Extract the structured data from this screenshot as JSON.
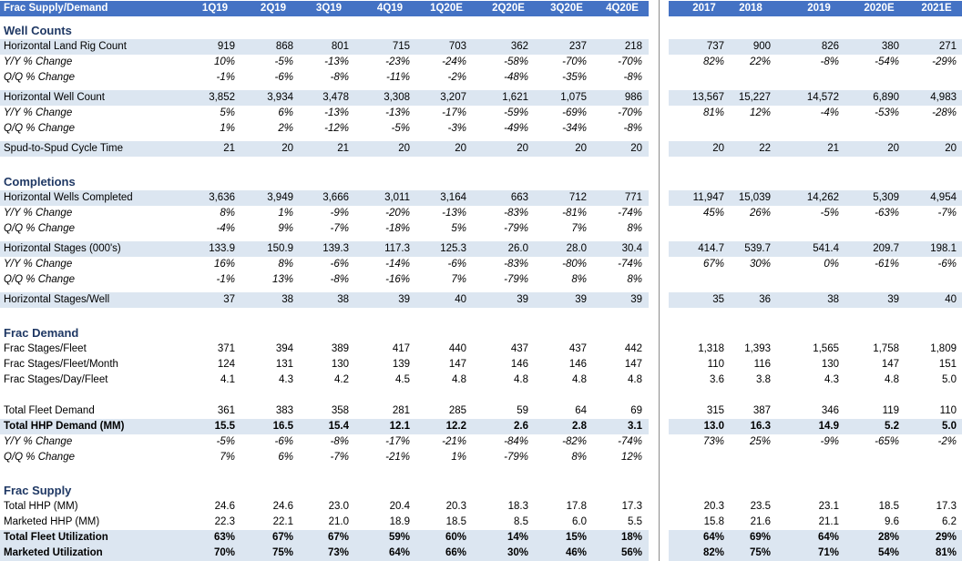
{
  "colors": {
    "header_bg": "#4472c4",
    "band_bg": "#dce6f1",
    "section_text": "#1f3864"
  },
  "header": {
    "title": "Frac Supply/Demand",
    "columns": [
      "1Q19",
      "2Q19",
      "3Q19",
      "4Q19",
      "1Q20E",
      "2Q20E",
      "3Q20E",
      "4Q20E",
      "2017",
      "2018",
      "2019",
      "2020E",
      "2021E"
    ]
  },
  "sections": {
    "well_counts": "Well Counts",
    "completions": "Completions",
    "frac_demand": "Frac Demand",
    "frac_supply": "Frac Supply"
  },
  "rows": {
    "land_rig": {
      "label": "Horizontal Land Rig Count",
      "values": [
        "919",
        "868",
        "801",
        "715",
        "703",
        "362",
        "237",
        "218",
        "737",
        "900",
        "826",
        "380",
        "271"
      ]
    },
    "land_rig_yy": {
      "label": "Y/Y % Change",
      "values": [
        "10%",
        "-5%",
        "-13%",
        "-23%",
        "-24%",
        "-58%",
        "-70%",
        "-70%",
        "82%",
        "22%",
        "-8%",
        "-54%",
        "-29%"
      ]
    },
    "land_rig_qq": {
      "label": "Q/Q % Change",
      "values": [
        "-1%",
        "-6%",
        "-8%",
        "-11%",
        "-2%",
        "-48%",
        "-35%",
        "-8%",
        "",
        "",
        "",
        "",
        ""
      ]
    },
    "well_count": {
      "label": "Horizontal Well Count",
      "values": [
        "3,852",
        "3,934",
        "3,478",
        "3,308",
        "3,207",
        "1,621",
        "1,075",
        "986",
        "13,567",
        "15,227",
        "14,572",
        "6,890",
        "4,983"
      ]
    },
    "well_count_yy": {
      "label": "Y/Y % Change",
      "values": [
        "5%",
        "6%",
        "-13%",
        "-13%",
        "-17%",
        "-59%",
        "-69%",
        "-70%",
        "81%",
        "12%",
        "-4%",
        "-53%",
        "-28%"
      ]
    },
    "well_count_qq": {
      "label": "Q/Q % Change",
      "values": [
        "1%",
        "2%",
        "-12%",
        "-5%",
        "-3%",
        "-49%",
        "-34%",
        "-8%",
        "",
        "",
        "",
        "",
        ""
      ]
    },
    "spud": {
      "label": "Spud-to-Spud Cycle Time",
      "values": [
        "21",
        "20",
        "21",
        "20",
        "20",
        "20",
        "20",
        "20",
        "20",
        "22",
        "21",
        "20",
        "20"
      ]
    },
    "wells_completed": {
      "label": "Horizontal Wells Completed",
      "values": [
        "3,636",
        "3,949",
        "3,666",
        "3,011",
        "3,164",
        "663",
        "712",
        "771",
        "11,947",
        "15,039",
        "14,262",
        "5,309",
        "4,954"
      ]
    },
    "wells_completed_yy": {
      "label": "Y/Y % Change",
      "values": [
        "8%",
        "1%",
        "-9%",
        "-20%",
        "-13%",
        "-83%",
        "-81%",
        "-74%",
        "45%",
        "26%",
        "-5%",
        "-63%",
        "-7%"
      ]
    },
    "wells_completed_qq": {
      "label": "Q/Q % Change",
      "values": [
        "-4%",
        "9%",
        "-7%",
        "-18%",
        "5%",
        "-79%",
        "7%",
        "8%",
        "",
        "",
        "",
        "",
        ""
      ]
    },
    "stages": {
      "label": "Horizontal Stages (000's)",
      "values": [
        "133.9",
        "150.9",
        "139.3",
        "117.3",
        "125.3",
        "26.0",
        "28.0",
        "30.4",
        "414.7",
        "539.7",
        "541.4",
        "209.7",
        "198.1"
      ]
    },
    "stages_yy": {
      "label": "Y/Y % Change",
      "values": [
        "16%",
        "8%",
        "-6%",
        "-14%",
        "-6%",
        "-83%",
        "-80%",
        "-74%",
        "67%",
        "30%",
        "0%",
        "-61%",
        "-6%"
      ]
    },
    "stages_qq": {
      "label": "Q/Q % Change",
      "values": [
        "-1%",
        "13%",
        "-8%",
        "-16%",
        "7%",
        "-79%",
        "8%",
        "8%",
        "",
        "",
        "",
        "",
        ""
      ]
    },
    "stages_per_well": {
      "label": "Horizontal Stages/Well",
      "values": [
        "37",
        "38",
        "38",
        "39",
        "40",
        "39",
        "39",
        "39",
        "35",
        "36",
        "38",
        "39",
        "40"
      ]
    },
    "stages_fleet": {
      "label": "Frac Stages/Fleet",
      "values": [
        "371",
        "394",
        "389",
        "417",
        "440",
        "437",
        "437",
        "442",
        "1,318",
        "1,393",
        "1,565",
        "1,758",
        "1,809"
      ]
    },
    "stages_fleet_month": {
      "label": "Frac Stages/Fleet/Month",
      "values": [
        "124",
        "131",
        "130",
        "139",
        "147",
        "146",
        "146",
        "147",
        "110",
        "116",
        "130",
        "147",
        "151"
      ]
    },
    "stages_day_fleet": {
      "label": "Frac Stages/Day/Fleet",
      "values": [
        "4.1",
        "4.3",
        "4.2",
        "4.5",
        "4.8",
        "4.8",
        "4.8",
        "4.8",
        "3.6",
        "3.8",
        "4.3",
        "4.8",
        "5.0"
      ]
    },
    "fleet_demand": {
      "label": "Total Fleet Demand",
      "values": [
        "361",
        "383",
        "358",
        "281",
        "285",
        "59",
        "64",
        "69",
        "315",
        "387",
        "346",
        "119",
        "110"
      ]
    },
    "hhp_demand": {
      "label": "Total HHP Demand (MM)",
      "values": [
        "15.5",
        "16.5",
        "15.4",
        "12.1",
        "12.2",
        "2.6",
        "2.8",
        "3.1",
        "13.0",
        "16.3",
        "14.9",
        "5.2",
        "5.0"
      ]
    },
    "hhp_demand_yy": {
      "label": "Y/Y % Change",
      "values": [
        "-5%",
        "-6%",
        "-8%",
        "-17%",
        "-21%",
        "-84%",
        "-82%",
        "-74%",
        "73%",
        "25%",
        "-9%",
        "-65%",
        "-2%"
      ]
    },
    "hhp_demand_qq": {
      "label": "Q/Q % Change",
      "values": [
        "7%",
        "6%",
        "-7%",
        "-21%",
        "1%",
        "-79%",
        "8%",
        "12%",
        "",
        "",
        "",
        "",
        ""
      ]
    },
    "total_hhp": {
      "label": "Total HHP (MM)",
      "values": [
        "24.6",
        "24.6",
        "23.0",
        "20.4",
        "20.3",
        "18.3",
        "17.8",
        "17.3",
        "20.3",
        "23.5",
        "23.1",
        "18.5",
        "17.3"
      ]
    },
    "marketed_hhp": {
      "label": "Marketed HHP (MM)",
      "values": [
        "22.3",
        "22.1",
        "21.0",
        "18.9",
        "18.5",
        "8.5",
        "6.0",
        "5.5",
        "15.8",
        "21.6",
        "21.1",
        "9.6",
        "6.2"
      ]
    },
    "fleet_util": {
      "label": "Total Fleet Utilization",
      "values": [
        "63%",
        "67%",
        "67%",
        "59%",
        "60%",
        "14%",
        "15%",
        "18%",
        "64%",
        "69%",
        "64%",
        "28%",
        "29%"
      ]
    },
    "marketed_util": {
      "label": "Marketed Utilization",
      "values": [
        "70%",
        "75%",
        "73%",
        "64%",
        "66%",
        "30%",
        "46%",
        "56%",
        "82%",
        "75%",
        "71%",
        "54%",
        "81%"
      ]
    }
  }
}
